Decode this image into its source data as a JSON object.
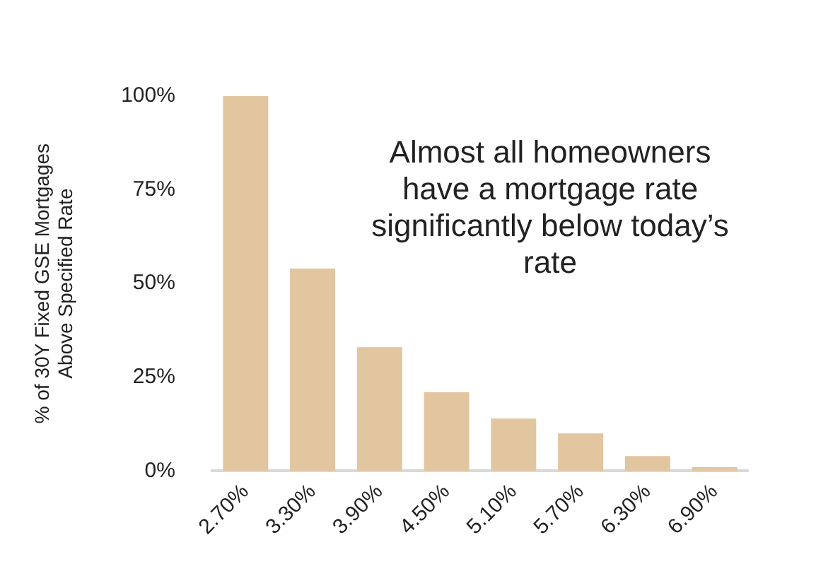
{
  "chart_data": {
    "type": "bar",
    "ylabel": "% of 30Y Fixed GSE Mortgages\nAbove Specified Rate",
    "categories": [
      "2.70%",
      "3.30%",
      "3.90%",
      "4.50%",
      "5.10%",
      "5.70%",
      "6.30%",
      "6.90%"
    ],
    "values": [
      100,
      54,
      33,
      21,
      14,
      10,
      4,
      1
    ],
    "color": "#e2c69f",
    "ylim": [
      0,
      100
    ],
    "yticks": [
      {
        "value": 0,
        "label": "0%"
      },
      {
        "value": 25,
        "label": "25%"
      },
      {
        "value": 50,
        "label": "50%"
      },
      {
        "value": 75,
        "label": "75%"
      },
      {
        "value": 100,
        "label": "100%"
      }
    ],
    "grid": false,
    "legend": false,
    "annotations": [
      "Almost all homeowners have a mortgage rate significantly below today’s rate"
    ]
  }
}
